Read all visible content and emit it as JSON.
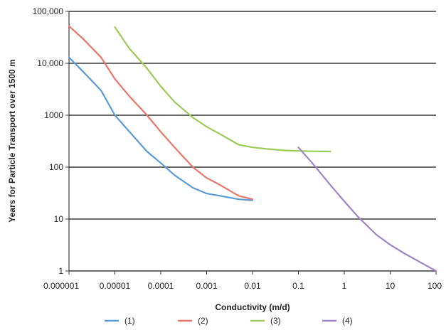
{
  "chart_data": {
    "type": "line",
    "xlabel": "Conductivity (m/d)",
    "ylabel": "Years for Particle Transport over 1500 m",
    "x_scale": "log",
    "y_scale": "log",
    "xlim": [
      1e-06,
      100
    ],
    "ylim": [
      1,
      100000
    ],
    "grid": "horizontal",
    "legend_position": "bottom",
    "x_ticks": [
      {
        "value": 1e-06,
        "label": "0.000001"
      },
      {
        "value": 1e-05,
        "label": "0.00001"
      },
      {
        "value": 0.0001,
        "label": "0.0001"
      },
      {
        "value": 0.001,
        "label": "0.001"
      },
      {
        "value": 0.01,
        "label": "0.01"
      },
      {
        "value": 0.1,
        "label": "0.1"
      },
      {
        "value": 1,
        "label": "1"
      },
      {
        "value": 10,
        "label": "10"
      },
      {
        "value": 100,
        "label": "100"
      }
    ],
    "y_ticks": [
      {
        "value": 1,
        "label": "1"
      },
      {
        "value": 10,
        "label": "10"
      },
      {
        "value": 100,
        "label": "100"
      },
      {
        "value": 1000,
        "label": "1000"
      },
      {
        "value": 10000,
        "label": "10,000"
      },
      {
        "value": 100000,
        "label": "100,000"
      }
    ],
    "series": [
      {
        "name": "(1)",
        "color": "#5b9bd5",
        "points": [
          [
            1e-06,
            13000
          ],
          [
            2e-06,
            7000
          ],
          [
            5e-06,
            3000
          ],
          [
            1e-05,
            1000
          ],
          [
            2e-05,
            500
          ],
          [
            5e-05,
            200
          ],
          [
            0.0001,
            120
          ],
          [
            0.0002,
            70
          ],
          [
            0.0005,
            40
          ],
          [
            0.001,
            31
          ],
          [
            0.002,
            28
          ],
          [
            0.005,
            24
          ],
          [
            0.01,
            23
          ]
        ]
      },
      {
        "name": "(2)",
        "color": "#e8766a",
        "points": [
          [
            1e-06,
            52000
          ],
          [
            2e-06,
            30000
          ],
          [
            5e-06,
            13000
          ],
          [
            1e-05,
            5000
          ],
          [
            2e-05,
            2400
          ],
          [
            5e-05,
            1000
          ],
          [
            0.0001,
            480
          ],
          [
            0.0002,
            240
          ],
          [
            0.0005,
            100
          ],
          [
            0.001,
            62
          ],
          [
            0.002,
            45
          ],
          [
            0.005,
            28
          ],
          [
            0.01,
            24
          ]
        ]
      },
      {
        "name": "(3)",
        "color": "#9bcb57",
        "points": [
          [
            1e-05,
            50000
          ],
          [
            2e-05,
            20000
          ],
          [
            5e-05,
            8000
          ],
          [
            0.0001,
            3600
          ],
          [
            0.0002,
            1800
          ],
          [
            0.0005,
            900
          ],
          [
            0.001,
            600
          ],
          [
            0.002,
            430
          ],
          [
            0.005,
            270
          ],
          [
            0.01,
            240
          ],
          [
            0.02,
            225
          ],
          [
            0.05,
            210
          ],
          [
            0.1,
            205
          ],
          [
            0.2,
            202
          ],
          [
            0.5,
            200
          ]
        ]
      },
      {
        "name": "(4)",
        "color": "#9b85c8",
        "points": [
          [
            0.1,
            240
          ],
          [
            0.2,
            120
          ],
          [
            0.5,
            45
          ],
          [
            1,
            22
          ],
          [
            2,
            11
          ],
          [
            5,
            5
          ],
          [
            10,
            3.2
          ],
          [
            20,
            2.2
          ],
          [
            50,
            1.4
          ],
          [
            100,
            1
          ]
        ]
      }
    ]
  }
}
